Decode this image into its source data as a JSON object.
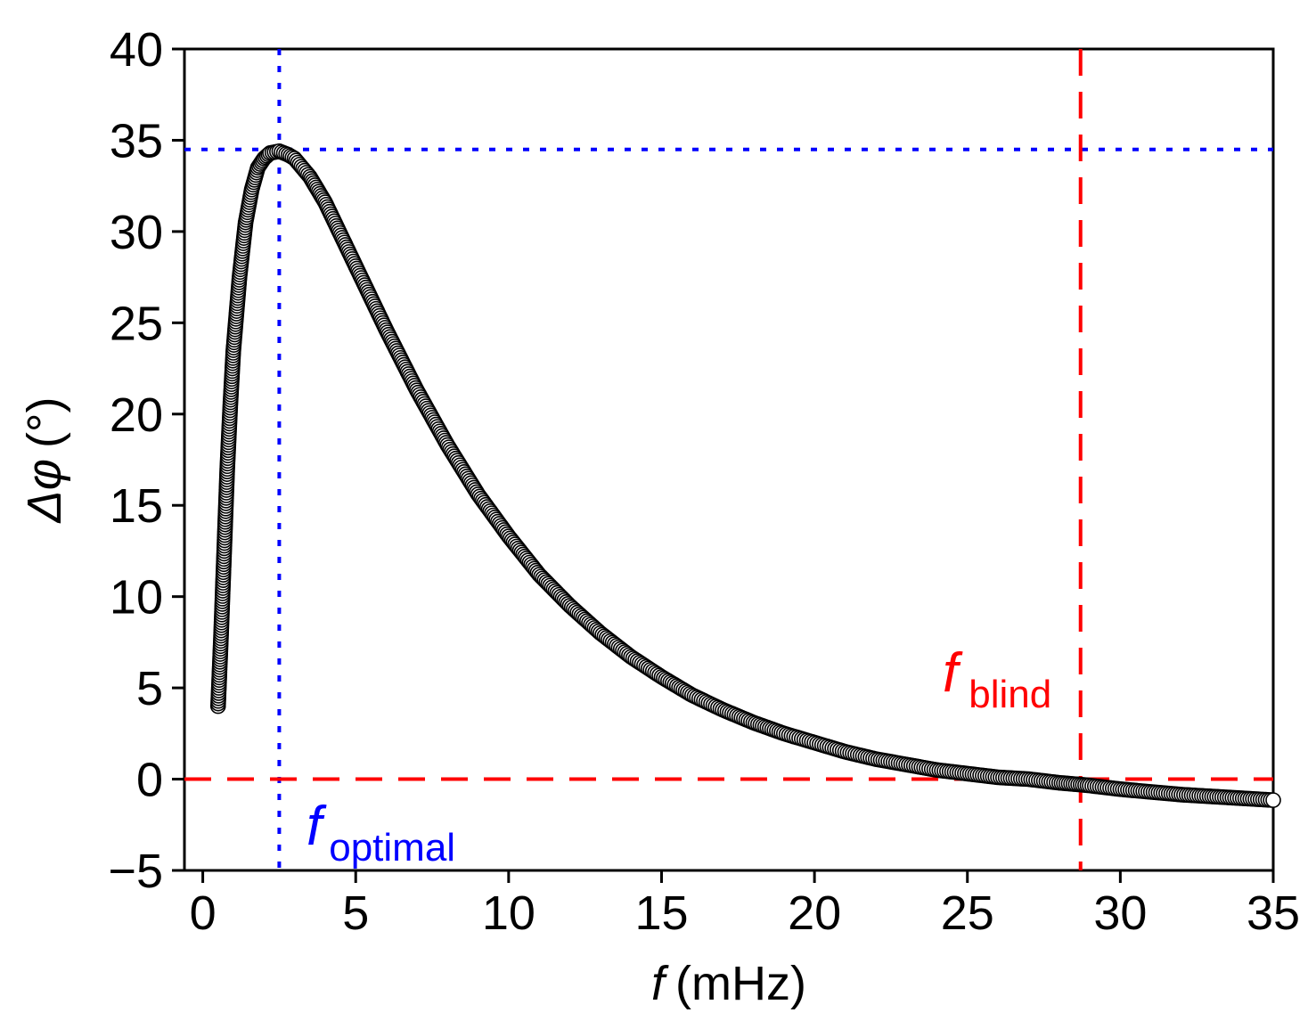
{
  "chart_data": {
    "type": "scatter",
    "title": "",
    "xlabel": {
      "symbol": "f",
      "unit": "(mHz)"
    },
    "ylabel": {
      "symbol": "Δφ",
      "unit": "(°)"
    },
    "xlim": [
      -0.6,
      35
    ],
    "ylim": [
      -5,
      40
    ],
    "xticks": [
      0,
      5,
      10,
      15,
      20,
      25,
      30,
      35
    ],
    "yticks": [
      -5,
      0,
      5,
      10,
      15,
      20,
      25,
      30,
      35,
      40
    ],
    "xtick_labels": [
      "0",
      "5",
      "10",
      "15",
      "20",
      "25",
      "30",
      "35"
    ],
    "ytick_labels": [
      "−5",
      "0",
      "5",
      "10",
      "15",
      "20",
      "25",
      "30",
      "35",
      "40"
    ],
    "grid": false,
    "legend": "none",
    "series": [
      {
        "name": "Δφ vs f",
        "marker": "open-circle",
        "x": [
          0.5,
          0.6,
          0.7,
          0.8,
          0.9,
          1.0,
          1.2,
          1.4,
          1.6,
          1.8,
          2.0,
          2.2,
          2.5,
          2.8,
          3.0,
          3.5,
          4.0,
          5.0,
          6.0,
          7.0,
          8.0,
          9.0,
          10.0,
          11.0,
          12.0,
          13.0,
          14.0,
          15.0,
          16.0,
          17.0,
          18.0,
          19.0,
          20.0,
          21.0,
          22.0,
          23.0,
          24.0,
          25.0,
          26.0,
          27.0,
          28.0,
          28.7,
          29.0,
          30.0,
          31.0,
          32.0,
          33.0,
          34.0,
          35.0
        ],
        "y": [
          4.0,
          8.0,
          12.5,
          17.0,
          20.5,
          23.5,
          27.5,
          30.5,
          32.3,
          33.5,
          34.0,
          34.3,
          34.4,
          34.2,
          34.0,
          33.0,
          31.6,
          28.1,
          24.6,
          21.3,
          18.3,
          15.6,
          13.3,
          11.2,
          9.5,
          8.0,
          6.7,
          5.6,
          4.6,
          3.8,
          3.1,
          2.5,
          2.0,
          1.5,
          1.1,
          0.8,
          0.5,
          0.3,
          0.1,
          0.0,
          -0.2,
          -0.3,
          -0.35,
          -0.55,
          -0.7,
          -0.85,
          -0.95,
          -1.05,
          -1.15
        ]
      }
    ],
    "reference_lines": [
      {
        "name": "Δφ max",
        "orientation": "horizontal",
        "value": 34.5,
        "color": "#0000ff",
        "style": "dotted"
      },
      {
        "name": "f optimal",
        "orientation": "vertical",
        "value": 2.5,
        "color": "#0000ff",
        "style": "dotted"
      },
      {
        "name": "zero phase",
        "orientation": "horizontal",
        "value": 0,
        "color": "#ff0000",
        "style": "dashed"
      },
      {
        "name": "f blind",
        "orientation": "vertical",
        "value": 28.7,
        "color": "#ff0000",
        "style": "dashed"
      }
    ],
    "annotations": [
      {
        "name": "f-optimal",
        "main": "f",
        "sub": "optimal",
        "color": "#0000ff"
      },
      {
        "name": "f-blind",
        "main": "f",
        "sub": "blind",
        "color": "#ff0000"
      }
    ]
  },
  "colors": {
    "axis": "#000000",
    "marker_stroke": "#000000",
    "marker_fill": "#ffffff",
    "blue": "#0000ff",
    "red": "#ff0000"
  }
}
